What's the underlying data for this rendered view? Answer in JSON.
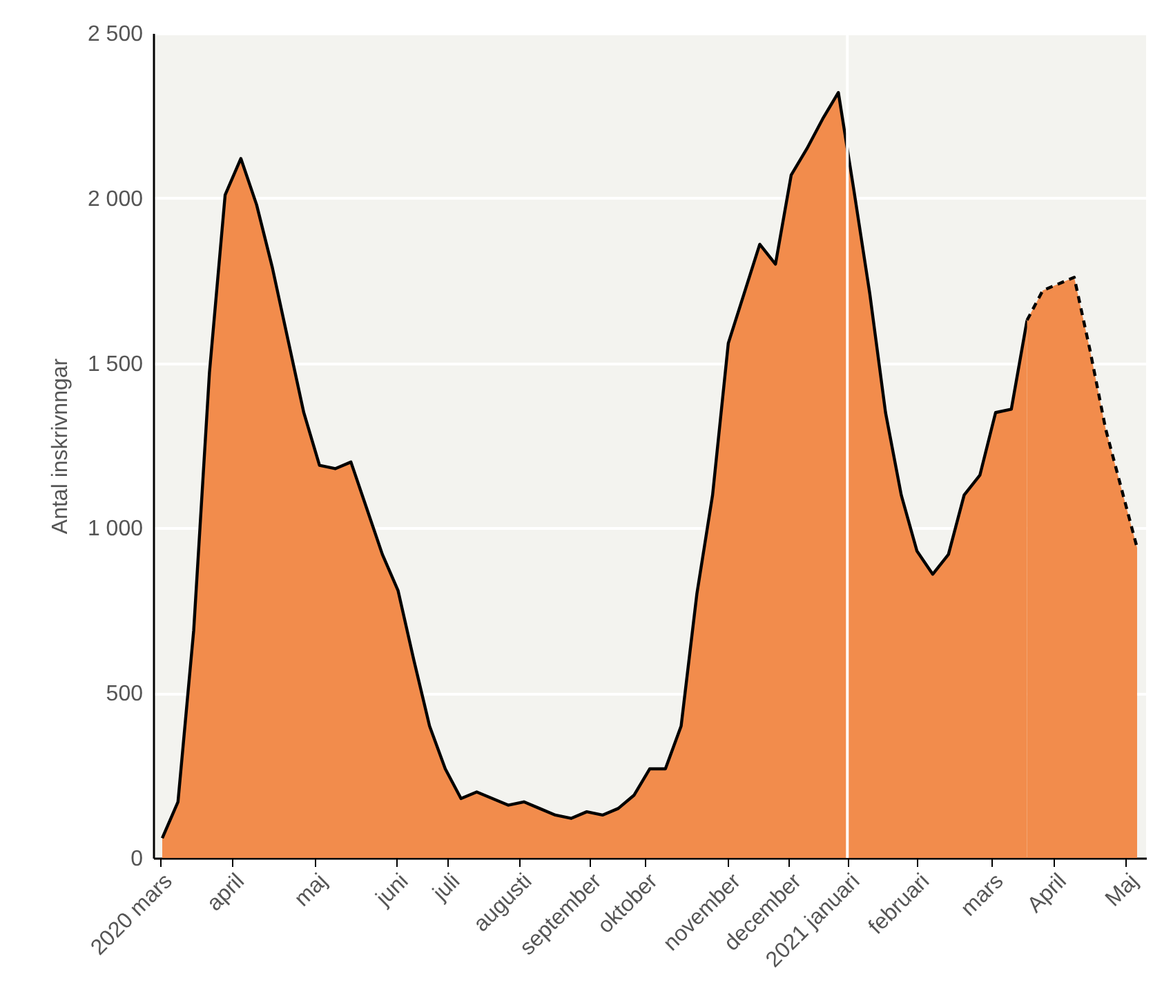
{
  "chart_data": {
    "type": "area",
    "ylabel": "Antal inskrivnngar",
    "x": [
      "2020-03-02",
      "2020-03-09",
      "2020-03-16",
      "2020-03-23",
      "2020-03-30",
      "2020-04-06",
      "2020-04-13",
      "2020-04-20",
      "2020-04-27",
      "2020-05-04",
      "2020-05-11",
      "2020-05-18",
      "2020-05-25",
      "2020-06-01",
      "2020-06-08",
      "2020-06-15",
      "2020-06-22",
      "2020-06-29",
      "2020-07-06",
      "2020-07-13",
      "2020-07-20",
      "2020-07-27",
      "2020-08-03",
      "2020-08-10",
      "2020-08-17",
      "2020-08-24",
      "2020-08-31",
      "2020-09-07",
      "2020-09-14",
      "2020-09-21",
      "2020-09-28",
      "2020-10-05",
      "2020-10-12",
      "2020-10-19",
      "2020-10-26",
      "2020-11-02",
      "2020-11-09",
      "2020-11-16",
      "2020-11-23",
      "2020-11-30",
      "2020-12-07",
      "2020-12-14",
      "2020-12-21",
      "2020-12-28",
      "2021-01-04",
      "2021-01-11",
      "2021-01-18",
      "2021-01-25",
      "2021-02-01",
      "2021-02-08",
      "2021-02-15",
      "2021-02-22",
      "2021-03-01",
      "2021-03-08",
      "2021-03-15",
      "2021-03-22",
      "2021-03-29",
      "2021-04-05",
      "2021-04-12",
      "2021-04-19",
      "2021-04-26",
      "2021-05-03",
      "2021-05-10"
    ],
    "series": [
      {
        "color": "#f28c4c",
        "line_style": "solid",
        "values": [
          60,
          170,
          690,
          1470,
          2010,
          2120,
          1980,
          1790,
          1570,
          1350,
          1190,
          1180,
          1200,
          1060,
          920,
          810,
          600,
          400,
          270,
          180,
          200,
          180,
          160,
          170,
          150,
          130,
          120,
          140,
          130,
          150,
          190,
          270,
          270,
          400,
          800,
          1100,
          1560,
          1710,
          1860,
          1800,
          2070,
          2150,
          2240,
          2320,
          2020,
          1710,
          1350,
          1100,
          930,
          860,
          920,
          1100,
          1160,
          1350,
          1360,
          1630,
          null,
          null,
          null,
          null,
          null,
          null,
          null
        ]
      },
      {
        "color": "#f28c4c",
        "line_style": "dashed",
        "values": [
          null,
          null,
          null,
          null,
          null,
          null,
          null,
          null,
          null,
          null,
          null,
          null,
          null,
          null,
          null,
          null,
          null,
          null,
          null,
          null,
          null,
          null,
          null,
          null,
          null,
          null,
          null,
          null,
          null,
          null,
          null,
          null,
          null,
          null,
          null,
          null,
          null,
          null,
          null,
          null,
          null,
          null,
          null,
          null,
          null,
          null,
          null,
          null,
          null,
          null,
          null,
          null,
          null,
          null,
          null,
          1630,
          1720,
          1740,
          1760,
          1540,
          1300,
          1120,
          940
        ]
      }
    ],
    "xlim": [
      "2020-02-27",
      "2021-05-14"
    ],
    "xticks": [
      {
        "value": "2020-03-01",
        "label": "2020 mars"
      },
      {
        "value": "2020-04-02",
        "label": "april"
      },
      {
        "value": "2020-05-09",
        "label": "maj"
      },
      {
        "value": "2020-06-14",
        "label": "juni"
      },
      {
        "value": "2020-07-07",
        "label": "juli"
      },
      {
        "value": "2020-08-08",
        "label": "augusti"
      },
      {
        "value": "2020-09-08",
        "label": "september"
      },
      {
        "value": "2020-10-03",
        "label": "oktober"
      },
      {
        "value": "2020-11-09",
        "label": "november"
      },
      {
        "value": "2020-12-06",
        "label": "december"
      },
      {
        "value": "2021-01-01",
        "label": "2021 januari"
      },
      {
        "value": "2021-02-01",
        "label": "februari"
      },
      {
        "value": "2021-03-06",
        "label": "mars"
      },
      {
        "value": "2021-04-03",
        "label": "April"
      },
      {
        "value": "2021-05-05",
        "label": "Maj"
      }
    ],
    "ylim": [
      0,
      2500
    ],
    "yticks": [
      {
        "value": 0,
        "label": "0"
      },
      {
        "value": 500,
        "label": "500"
      },
      {
        "value": 1000,
        "label": "1 000"
      },
      {
        "value": 1500,
        "label": "1 500"
      },
      {
        "value": 2000,
        "label": "2 000"
      },
      {
        "value": 2500,
        "label": "2 500"
      }
    ],
    "ref_lines": [
      {
        "axis": "x",
        "value": "2021-01-01",
        "color": "#ffffff"
      }
    ],
    "grid": "y"
  }
}
